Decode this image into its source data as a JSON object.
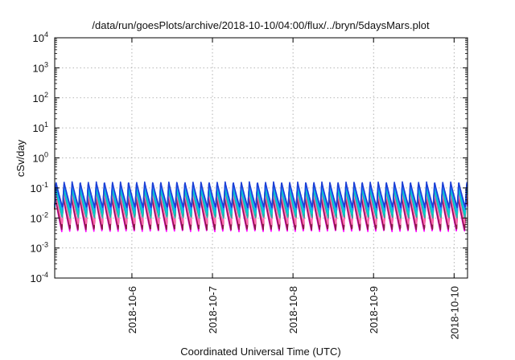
{
  "chart_data": {
    "type": "line",
    "title": "/data/run/goesPlots/archive/2018-10-10/04:00/flux/../bryn/5daysMars.plot",
    "xlabel": "Coordinated Universal Time (UTC)",
    "ylabel": "cSv/day",
    "y_scale": "log",
    "ylim": [
      0.0001,
      10000
    ],
    "xlim": [
      "2018-10-05T01:00",
      "2018-10-10T04:00"
    ],
    "x_ticks": [
      "2018-10-6",
      "2018-10-7",
      "2018-10-8",
      "2018-10-9",
      "2018-10-10"
    ],
    "y_ticks": [
      {
        "base": "10",
        "exp": "4"
      },
      {
        "base": "10",
        "exp": "3"
      },
      {
        "base": "10",
        "exp": "2"
      },
      {
        "base": "10",
        "exp": "1"
      },
      {
        "base": "10",
        "exp": "0"
      },
      {
        "base": "10",
        "exp": "-1"
      },
      {
        "base": "10",
        "exp": "-2"
      },
      {
        "base": "10",
        "exp": "-3"
      },
      {
        "base": "10",
        "exp": "-4"
      }
    ],
    "grid": true,
    "legend": "none",
    "cycles_per_day": 10,
    "series": [
      {
        "color": "#ff00ff",
        "peak": 0.05,
        "trough": 0.0035,
        "phase": 0.12
      },
      {
        "color": "#d40000",
        "peak": 0.06,
        "trough": 0.0045,
        "phase": 0.1
      },
      {
        "color": "#8b1a4a",
        "peak": 0.055,
        "trough": 0.004,
        "phase": 0.11
      },
      {
        "color": "#ff69b4",
        "peak": 0.08,
        "trough": 0.006,
        "phase": 0.09
      },
      {
        "color": "#20b2aa",
        "peak": 0.095,
        "trough": 0.01,
        "phase": 0.06
      },
      {
        "color": "#00ced1",
        "peak": 0.11,
        "trough": 0.013,
        "phase": 0.05
      },
      {
        "color": "#1e90ff",
        "peak": 0.14,
        "trough": 0.018,
        "phase": 0.03
      },
      {
        "color": "#1c3fd6",
        "peak": 0.16,
        "trough": 0.022,
        "phase": 0.02
      }
    ]
  }
}
